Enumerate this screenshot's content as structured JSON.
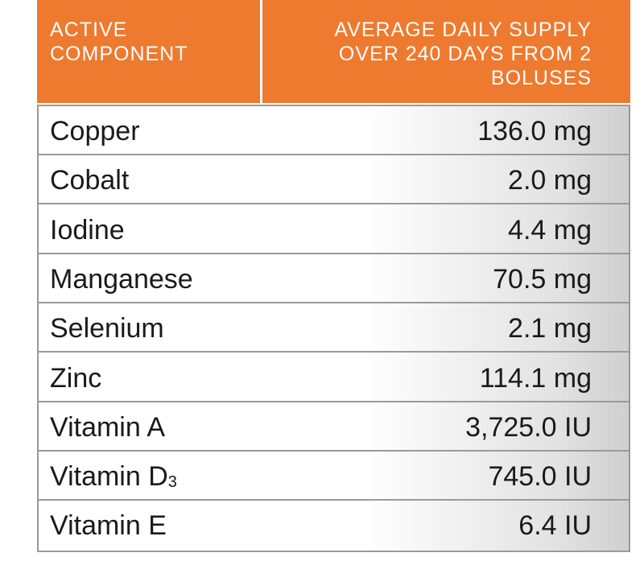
{
  "table": {
    "header": [
      {
        "lines": [
          "ACTIVE",
          "COMPONENT"
        ]
      },
      {
        "lines": [
          "AVERAGE DAILY SUPPLY",
          "OVER 240 DAYS FROM 2",
          "BOLUSES"
        ]
      }
    ],
    "rows": [
      [
        "Copper",
        "136.0 mg"
      ],
      [
        "Cobalt",
        "2.0 mg"
      ],
      [
        "Iodine",
        "4.4 mg"
      ],
      [
        "Manganese",
        "70.5 mg"
      ],
      [
        "Selenium",
        "2.1 mg"
      ],
      [
        "Zinc",
        "114.1 mg"
      ],
      [
        "Vitamin A",
        "3,725.0 IU"
      ],
      [
        {
          "text": "Vitamin D",
          "subscript": "3"
        },
        "745.0 IU"
      ],
      [
        "Vitamin E",
        "6.4 IU"
      ]
    ]
  }
}
